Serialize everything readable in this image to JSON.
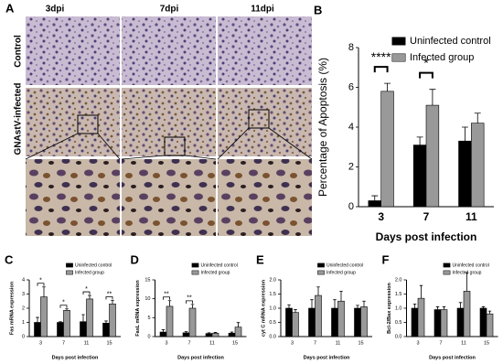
{
  "panel_a": {
    "label": "A",
    "columns": [
      "3dpi",
      "7dpi",
      "11dpi"
    ],
    "rows": [
      "Control",
      "GNAstV-infected"
    ]
  },
  "chart_data": [
    {
      "type": "bar",
      "panel": "B",
      "ylabel": "Percentage of Apoptosis (%)",
      "xlabel": "Days post infection",
      "categories": [
        "3",
        "7",
        "11"
      ],
      "ylim": [
        0,
        8
      ],
      "yticks": [
        0,
        2,
        4,
        6,
        8
      ],
      "series": [
        {
          "name": "Uninfected control",
          "color": "#000000",
          "values": [
            0.3,
            3.1,
            3.3
          ],
          "errors": [
            0.25,
            0.4,
            0.7
          ]
        },
        {
          "name": "Infected group",
          "color": "#999999",
          "values": [
            5.8,
            5.1,
            4.2
          ],
          "errors": [
            0.4,
            0.8,
            0.5
          ]
        }
      ],
      "annotations": [
        {
          "text": "****",
          "category": "3"
        },
        {
          "text": "*",
          "category": "7"
        }
      ]
    },
    {
      "type": "bar",
      "panel": "C",
      "ylabel": "Fas mRNA expression",
      "xlabel": "Days post infection",
      "categories": [
        "3",
        "7",
        "11",
        "15"
      ],
      "ylim": [
        0,
        4
      ],
      "yticks": [
        0,
        1,
        2,
        3,
        4
      ],
      "series": [
        {
          "name": "Uninfected control",
          "color": "#000000",
          "values": [
            1.0,
            1.0,
            1.05,
            0.95
          ],
          "errors": [
            0.35,
            0.05,
            0.5,
            0.15
          ]
        },
        {
          "name": "Infected group",
          "color": "#999999",
          "values": [
            2.8,
            1.85,
            2.65,
            2.3
          ],
          "errors": [
            0.7,
            0.1,
            0.25,
            0.25
          ]
        }
      ],
      "annotations": [
        {
          "text": "*",
          "category": "3"
        },
        {
          "text": "*",
          "category": "7"
        },
        {
          "text": "*",
          "category": "11"
        },
        {
          "text": "**",
          "category": "15"
        }
      ]
    },
    {
      "type": "bar",
      "panel": "D",
      "ylabel": "FasL mRNA expression",
      "xlabel": "Days post infection",
      "categories": [
        "3",
        "7",
        "11",
        "15"
      ],
      "ylim": [
        0,
        15
      ],
      "yticks": [
        0,
        5,
        10,
        15
      ],
      "series": [
        {
          "name": "Uninfected control",
          "color": "#000000",
          "values": [
            1.2,
            1.0,
            0.8,
            0.9
          ],
          "errors": [
            0.6,
            0.3,
            0.2,
            0.3
          ]
        },
        {
          "name": "Infected group",
          "color": "#999999",
          "values": [
            8.0,
            7.5,
            0.9,
            2.5
          ],
          "errors": [
            1.5,
            1.0,
            0.2,
            1.2
          ]
        }
      ],
      "annotations": [
        {
          "text": "**",
          "category": "3"
        },
        {
          "text": "**",
          "category": "7"
        }
      ]
    },
    {
      "type": "bar",
      "panel": "E",
      "ylabel": "cyt C mRNA expression",
      "xlabel": "Days post infection",
      "categories": [
        "3",
        "7",
        "11",
        "15"
      ],
      "ylim": [
        0,
        2
      ],
      "yticks": [
        {
          "value": 0,
          "label": "0.0"
        },
        0.5,
        {
          "value": 1,
          "label": "1.0"
        },
        1.5,
        {
          "value": 2,
          "label": "2.0"
        }
      ],
      "series": [
        {
          "name": "Uninfected control",
          "color": "#000000",
          "values": [
            1.0,
            1.0,
            1.0,
            1.0
          ],
          "errors": [
            0.12,
            0.3,
            0.3,
            0.1
          ]
        },
        {
          "name": "Infected group",
          "color": "#999999",
          "values": [
            0.85,
            1.45,
            1.25,
            1.05
          ],
          "errors": [
            0.1,
            0.3,
            0.35,
            0.2
          ]
        }
      ],
      "annotations": []
    },
    {
      "type": "bar",
      "panel": "F",
      "ylabel": "Bcl-2/Bax expression",
      "xlabel": "Days post infection",
      "categories": [
        "3",
        "7",
        "11",
        "15"
      ],
      "ylim": [
        0,
        2
      ],
      "yticks": [
        {
          "value": 0,
          "label": "0.0"
        },
        0.5,
        {
          "value": 1,
          "label": "1.0"
        },
        1.5,
        {
          "value": 2,
          "label": "2.0"
        }
      ],
      "series": [
        {
          "name": "Uninfected control",
          "color": "#000000",
          "values": [
            1.0,
            0.95,
            1.0,
            1.0
          ],
          "errors": [
            0.15,
            0.1,
            0.2,
            0.05
          ]
        },
        {
          "name": "Infected group",
          "color": "#999999",
          "values": [
            1.35,
            0.95,
            1.6,
            0.8
          ],
          "errors": [
            0.45,
            0.1,
            0.65,
            0.1
          ]
        }
      ],
      "annotations": []
    }
  ]
}
